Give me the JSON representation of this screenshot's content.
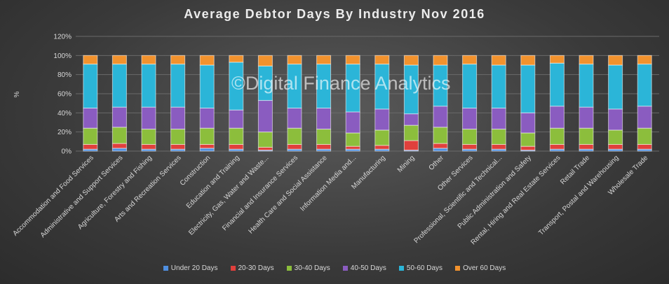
{
  "chart_data": {
    "type": "bar",
    "stacked": true,
    "title": "Average Debtor Days By Industry  Nov 2016",
    "watermark": "©Digital Finance Analytics",
    "ylabel": "%",
    "ylim": [
      0,
      120
    ],
    "yticks": [
      "0%",
      "20%",
      "40%",
      "60%",
      "80%",
      "100%",
      "120%"
    ],
    "grid": true,
    "legend_position": "bottom",
    "categories": [
      "Accommodation and Food Services",
      "Administrative and Support Services",
      "Agriculture, Forestry and Fishing",
      "Arts and Recreation Services",
      "Construction",
      "Education and Training",
      "Electricity, Gas, Water and Waste...",
      "Financial and Insurance Services",
      "Health Care and Social Assistance",
      "Information Media and...",
      "Manufacturing",
      "Mining",
      "Other",
      "Other Services",
      "Professional, Scientific and Technical...",
      "Public Administration and Safety",
      "Rental, Hiring and Real Estate Services",
      "Retail Trade",
      "Transport, Postal and Warehousing",
      "Wholesale Trade"
    ],
    "series": [
      {
        "name": "Under 20 Days",
        "color": "#4f8fe0",
        "values": [
          2,
          3,
          2,
          2,
          3,
          2,
          1,
          2,
          2,
          2,
          2,
          1,
          3,
          2,
          2,
          1,
          2,
          2,
          2,
          2
        ]
      },
      {
        "name": "20-30 Days",
        "color": "#e0403c",
        "values": [
          5,
          5,
          5,
          5,
          4,
          5,
          3,
          5,
          5,
          3,
          4,
          10,
          5,
          5,
          5,
          4,
          5,
          5,
          5,
          5
        ]
      },
      {
        "name": "30-40 Days",
        "color": "#8cbe3c",
        "values": [
          17,
          17,
          16,
          16,
          17,
          17,
          16,
          17,
          16,
          14,
          16,
          16,
          17,
          16,
          16,
          14,
          17,
          17,
          15,
          17
        ]
      },
      {
        "name": "40-50 Days",
        "color": "#8a5cc0",
        "values": [
          21,
          21,
          23,
          23,
          21,
          19,
          33,
          21,
          22,
          22,
          22,
          12,
          22,
          22,
          22,
          21,
          23,
          22,
          22,
          23
        ]
      },
      {
        "name": "50-60 Days",
        "color": "#2bb5d8",
        "values": [
          46,
          45,
          45,
          45,
          45,
          50,
          36,
          46,
          46,
          50,
          47,
          51,
          43,
          46,
          45,
          50,
          45,
          45,
          46,
          44
        ]
      },
      {
        "name": "Over 60 Days",
        "color": "#f2922d",
        "values": [
          9,
          9,
          9,
          9,
          10,
          7,
          11,
          9,
          9,
          9,
          9,
          10,
          10,
          9,
          10,
          10,
          8,
          9,
          10,
          9
        ]
      }
    ]
  }
}
